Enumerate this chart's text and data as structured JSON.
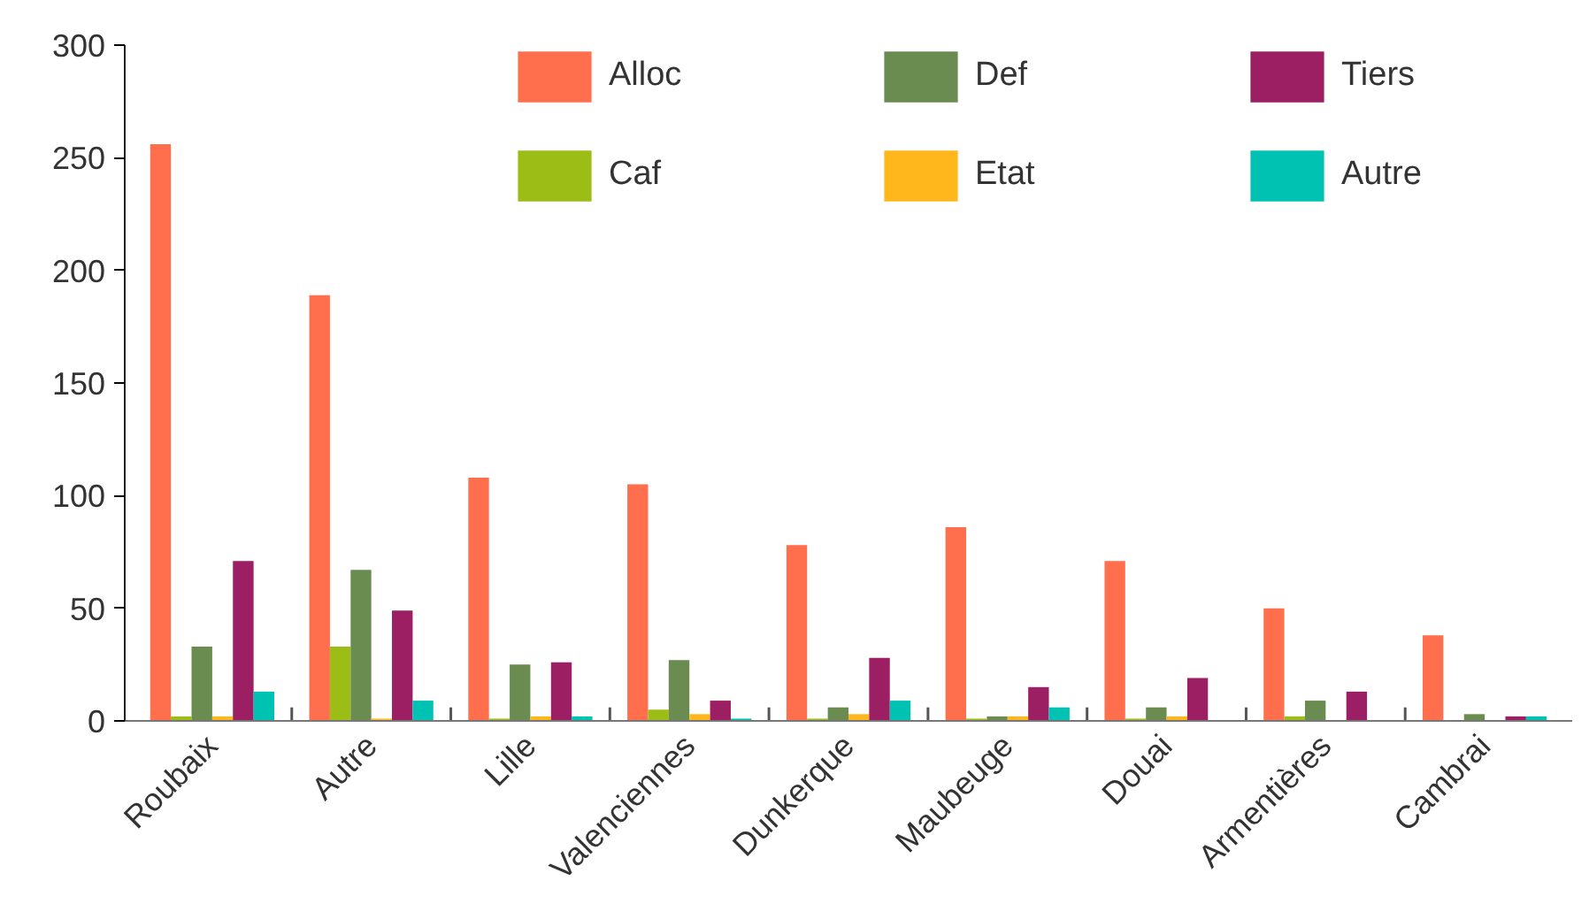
{
  "chart_data": {
    "type": "bar",
    "categories": [
      "Roubaix",
      "Autre",
      "Lille",
      "Valenciennes",
      "Dunkerque",
      "Maubeuge",
      "Douai",
      "Armentières",
      "Cambrai"
    ],
    "series": [
      {
        "name": "Alloc",
        "color": "#ff6f4e",
        "values": [
          256,
          189,
          108,
          105,
          78,
          86,
          71,
          50,
          38
        ]
      },
      {
        "name": "Caf",
        "color": "#9bbd15",
        "values": [
          2,
          33,
          1,
          5,
          1,
          1,
          1,
          2,
          0
        ]
      },
      {
        "name": "Def",
        "color": "#6a8c50",
        "values": [
          33,
          67,
          25,
          27,
          6,
          2,
          6,
          9,
          3
        ]
      },
      {
        "name": "Etat",
        "color": "#ffb71b",
        "values": [
          2,
          1,
          2,
          3,
          3,
          2,
          2,
          0,
          0
        ]
      },
      {
        "name": "Tiers",
        "color": "#9c1e63",
        "values": [
          71,
          49,
          26,
          9,
          28,
          15,
          19,
          13,
          2
        ]
      },
      {
        "name": "Autre",
        "color": "#00c2b2",
        "values": [
          13,
          9,
          2,
          1,
          9,
          6,
          0,
          0,
          2
        ]
      }
    ],
    "ylim": [
      0,
      300
    ],
    "yticks": [
      0,
      50,
      100,
      150,
      200,
      250,
      300
    ],
    "grid": false,
    "legend": "top right"
  }
}
